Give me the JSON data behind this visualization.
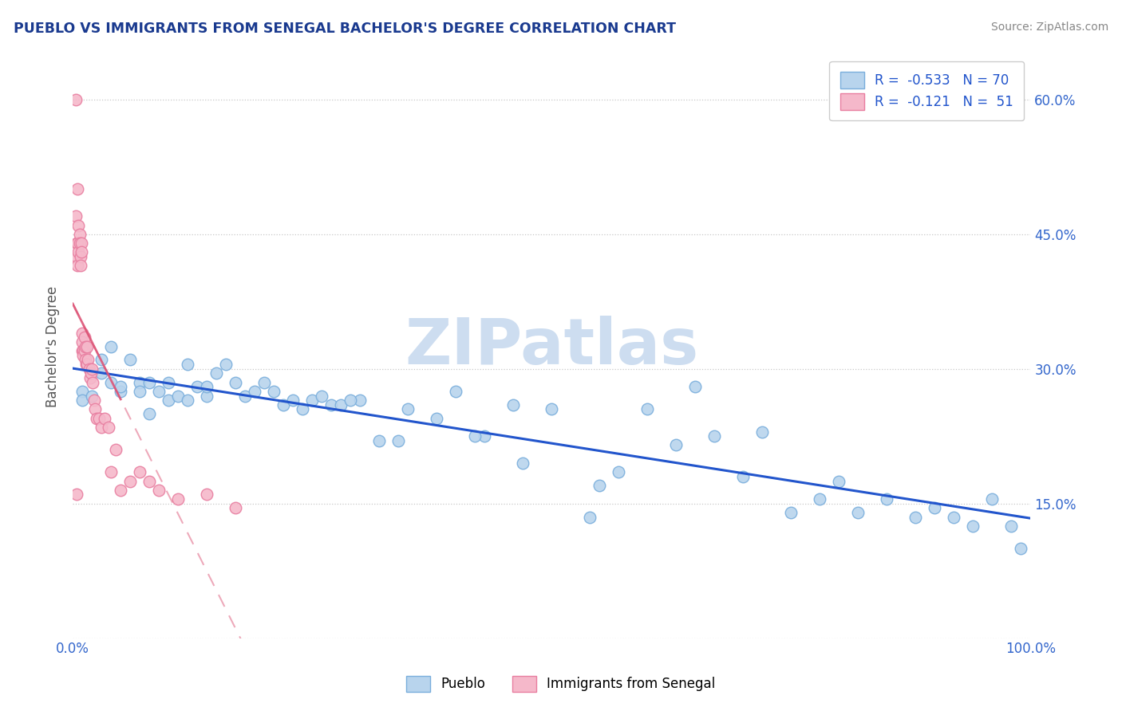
{
  "title": "PUEBLO VS IMMIGRANTS FROM SENEGAL BACHELOR'S DEGREE CORRELATION CHART",
  "source": "Source: ZipAtlas.com",
  "ylabel": "Bachelor's Degree",
  "watermark": "ZIPatlas",
  "legend_bottom": [
    "Pueblo",
    "Immigrants from Senegal"
  ],
  "pueblo_R": -0.533,
  "pueblo_N": 70,
  "senegal_R": -0.121,
  "senegal_N": 51,
  "xlim": [
    0,
    1.0
  ],
  "ylim": [
    0,
    0.65
  ],
  "yticks": [
    0.0,
    0.15,
    0.3,
    0.45,
    0.6
  ],
  "yticklabels": [
    "",
    "15.0%",
    "30.0%",
    "45.0%",
    "60.0%"
  ],
  "grid_color": "#c8c8c8",
  "blue_color": "#7aaedc",
  "blue_fill": "#b8d4ed",
  "pink_color": "#e87ea0",
  "pink_fill": "#f5b8ca",
  "blue_line_color": "#2255cc",
  "pink_line_color": "#dd5577",
  "title_color": "#1a3a8f",
  "source_color": "#888888",
  "watermark_color": "#cdddf0",
  "axis_label_color": "#555555",
  "tick_label_color": "#3366cc",
  "pueblo_x": [
    0.01,
    0.01,
    0.02,
    0.03,
    0.03,
    0.04,
    0.04,
    0.05,
    0.05,
    0.06,
    0.07,
    0.07,
    0.08,
    0.08,
    0.09,
    0.1,
    0.1,
    0.11,
    0.12,
    0.12,
    0.13,
    0.14,
    0.14,
    0.15,
    0.16,
    0.17,
    0.18,
    0.19,
    0.2,
    0.21,
    0.22,
    0.23,
    0.24,
    0.25,
    0.26,
    0.27,
    0.28,
    0.3,
    0.32,
    0.35,
    0.38,
    0.4,
    0.43,
    0.46,
    0.5,
    0.54,
    0.57,
    0.6,
    0.63,
    0.65,
    0.67,
    0.7,
    0.72,
    0.75,
    0.78,
    0.8,
    0.82,
    0.85,
    0.88,
    0.9,
    0.92,
    0.94,
    0.96,
    0.98,
    0.99,
    0.29,
    0.34,
    0.42,
    0.47,
    0.55
  ],
  "pueblo_y": [
    0.275,
    0.265,
    0.27,
    0.295,
    0.31,
    0.325,
    0.285,
    0.275,
    0.28,
    0.31,
    0.285,
    0.275,
    0.25,
    0.285,
    0.275,
    0.265,
    0.285,
    0.27,
    0.305,
    0.265,
    0.28,
    0.27,
    0.28,
    0.295,
    0.305,
    0.285,
    0.27,
    0.275,
    0.285,
    0.275,
    0.26,
    0.265,
    0.255,
    0.265,
    0.27,
    0.26,
    0.26,
    0.265,
    0.22,
    0.255,
    0.245,
    0.275,
    0.225,
    0.26,
    0.255,
    0.135,
    0.185,
    0.255,
    0.215,
    0.28,
    0.225,
    0.18,
    0.23,
    0.14,
    0.155,
    0.175,
    0.14,
    0.155,
    0.135,
    0.145,
    0.135,
    0.125,
    0.155,
    0.125,
    0.1,
    0.265,
    0.22,
    0.225,
    0.195,
    0.17
  ],
  "senegal_x": [
    0.003,
    0.003,
    0.004,
    0.004,
    0.005,
    0.005,
    0.005,
    0.006,
    0.006,
    0.007,
    0.007,
    0.008,
    0.008,
    0.009,
    0.009,
    0.01,
    0.01,
    0.01,
    0.011,
    0.011,
    0.012,
    0.012,
    0.013,
    0.013,
    0.014,
    0.015,
    0.015,
    0.016,
    0.017,
    0.018,
    0.019,
    0.02,
    0.021,
    0.022,
    0.023,
    0.025,
    0.027,
    0.03,
    0.033,
    0.037,
    0.04,
    0.045,
    0.05,
    0.06,
    0.07,
    0.08,
    0.09,
    0.11,
    0.14,
    0.17,
    0.004
  ],
  "senegal_y": [
    0.6,
    0.47,
    0.44,
    0.425,
    0.5,
    0.44,
    0.415,
    0.46,
    0.43,
    0.45,
    0.44,
    0.425,
    0.415,
    0.44,
    0.43,
    0.34,
    0.33,
    0.32,
    0.32,
    0.315,
    0.335,
    0.32,
    0.325,
    0.31,
    0.305,
    0.325,
    0.305,
    0.31,
    0.3,
    0.29,
    0.295,
    0.3,
    0.285,
    0.265,
    0.255,
    0.245,
    0.245,
    0.235,
    0.245,
    0.235,
    0.185,
    0.21,
    0.165,
    0.175,
    0.185,
    0.175,
    0.165,
    0.155,
    0.16,
    0.145,
    0.16
  ]
}
